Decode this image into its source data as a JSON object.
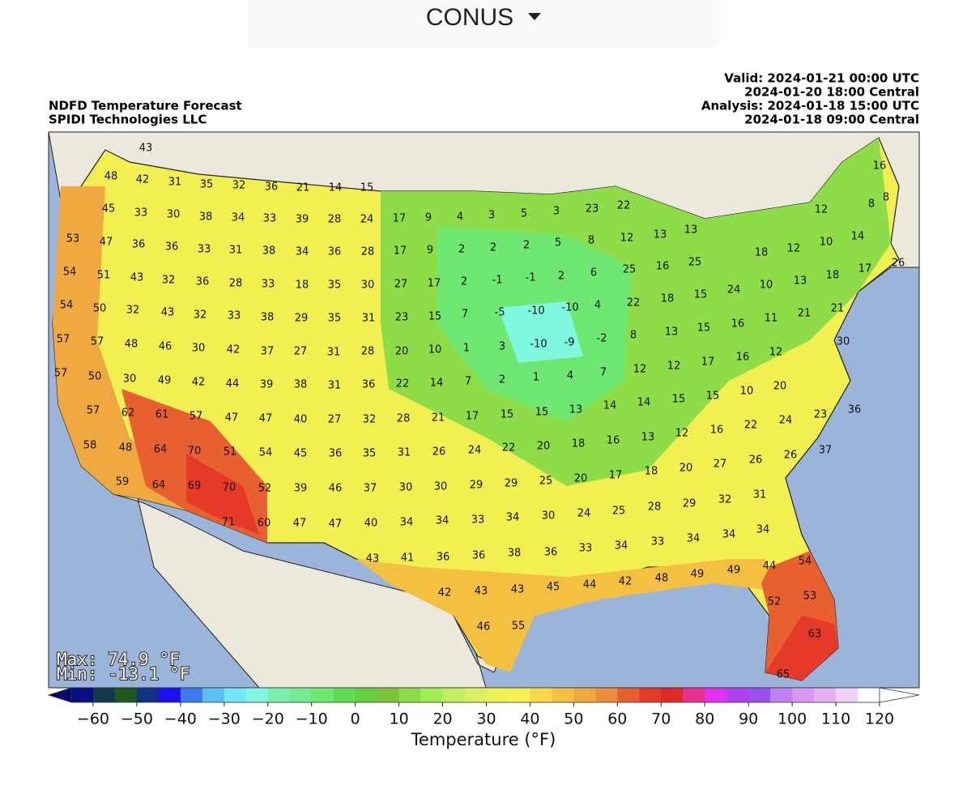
{
  "dropdown": {
    "label": "CONUS"
  },
  "header": {
    "title": "NDFD Temperature Forecast",
    "source": "SPIDI Technologies LLC",
    "valid_utc": "Valid: 2024-01-21 00:00 UTC",
    "valid_central": "2024-01-20 18:00 Central",
    "analysis_utc": "Analysis: 2024-01-18 15:00 UTC",
    "analysis_central": "2024-01-18 09:00 Central"
  },
  "stats": {
    "max": "Max: 74.9 °F",
    "min": "Min: -13.1 °F"
  },
  "map_labels": [
    43,
    48,
    42,
    31,
    35,
    32,
    36,
    21,
    14,
    15,
    45,
    33,
    30,
    38,
    34,
    33,
    39,
    28,
    24,
    17,
    9,
    4,
    3,
    5,
    3,
    23,
    22,
    16,
    8,
    8,
    12,
    53,
    47,
    36,
    36,
    33,
    31,
    38,
    34,
    36,
    28,
    17,
    9,
    2,
    2,
    2,
    5,
    8,
    12,
    13,
    13,
    18,
    12,
    10,
    14,
    54,
    51,
    43,
    32,
    36,
    28,
    33,
    18,
    35,
    30,
    27,
    17,
    2,
    -1,
    -1,
    2,
    6,
    25,
    16,
    25,
    26,
    17,
    18,
    13,
    10,
    24,
    15,
    54,
    50,
    32,
    43,
    32,
    33,
    38,
    29,
    35,
    31,
    23,
    15,
    7,
    -5,
    -10,
    -10,
    4,
    22,
    18,
    15,
    16,
    11,
    21,
    21,
    57,
    57,
    48,
    46,
    30,
    42,
    37,
    27,
    31,
    28,
    20,
    10,
    1,
    3,
    -10,
    -9,
    -2,
    8,
    13,
    30,
    12,
    16,
    17,
    12,
    12,
    57,
    50,
    30,
    49,
    42,
    44,
    39,
    38,
    31,
    36,
    22,
    14,
    7,
    2,
    1,
    4,
    7,
    20,
    10,
    15,
    15,
    14,
    14,
    57,
    62,
    61,
    57,
    47,
    47,
    40,
    27,
    32,
    28,
    21,
    17,
    15,
    15,
    13,
    36,
    23,
    24,
    22,
    16,
    12,
    13,
    16,
    58,
    48,
    64,
    70,
    51,
    54,
    45,
    36,
    35,
    31,
    26,
    24,
    22,
    20,
    18,
    37,
    26,
    26,
    27,
    20,
    18,
    17,
    59,
    64,
    69,
    70,
    52,
    39,
    46,
    37,
    30,
    30,
    29,
    29,
    25,
    20,
    31,
    32,
    29,
    28,
    25,
    24,
    30,
    71,
    60,
    47,
    47,
    40,
    34,
    34,
    33,
    34,
    36,
    33,
    34,
    33,
    34,
    34,
    34,
    43,
    41,
    36,
    36,
    38,
    54,
    44,
    49,
    49,
    48,
    42,
    44,
    45,
    43,
    43,
    42,
    53,
    52,
    46,
    55,
    63,
    65
  ],
  "colorbar": {
    "label": "Temperature (°F)",
    "lim": [
      -65,
      120
    ],
    "under_color": "#08086e",
    "over_color": "#ffffff",
    "colors": [
      "#0b0b85",
      "#133a4a",
      "#1e5a1e",
      "#123282",
      "#1a10f0",
      "#3a7cf0",
      "#5ac0f5",
      "#70e8f8",
      "#80f8e0",
      "#78f0b0",
      "#72ec90",
      "#6ee870",
      "#60dc50",
      "#62d040",
      "#7ec23a",
      "#8edc48",
      "#a0f050",
      "#c0f060",
      "#d8f260",
      "#f2f050",
      "#f6f050",
      "#f8d84a",
      "#f5c040",
      "#f0a840",
      "#ee8c38",
      "#e86030",
      "#e63a28",
      "#e02a28",
      "#e83090",
      "#e030f0",
      "#b040f0",
      "#9a50f0",
      "#c080f0",
      "#d898f0",
      "#e4b0f0",
      "#f0d0f8",
      "#ffffff"
    ],
    "ticks": [
      {
        "value": -60,
        "label": "−60"
      },
      {
        "value": -50,
        "label": "−50"
      },
      {
        "value": -40,
        "label": "−40"
      },
      {
        "value": -30,
        "label": "−30"
      },
      {
        "value": -20,
        "label": "−20"
      },
      {
        "value": -10,
        "label": "−10"
      },
      0,
      10,
      20,
      30,
      40,
      50,
      60,
      70,
      80,
      90,
      100,
      110,
      120
    ]
  }
}
